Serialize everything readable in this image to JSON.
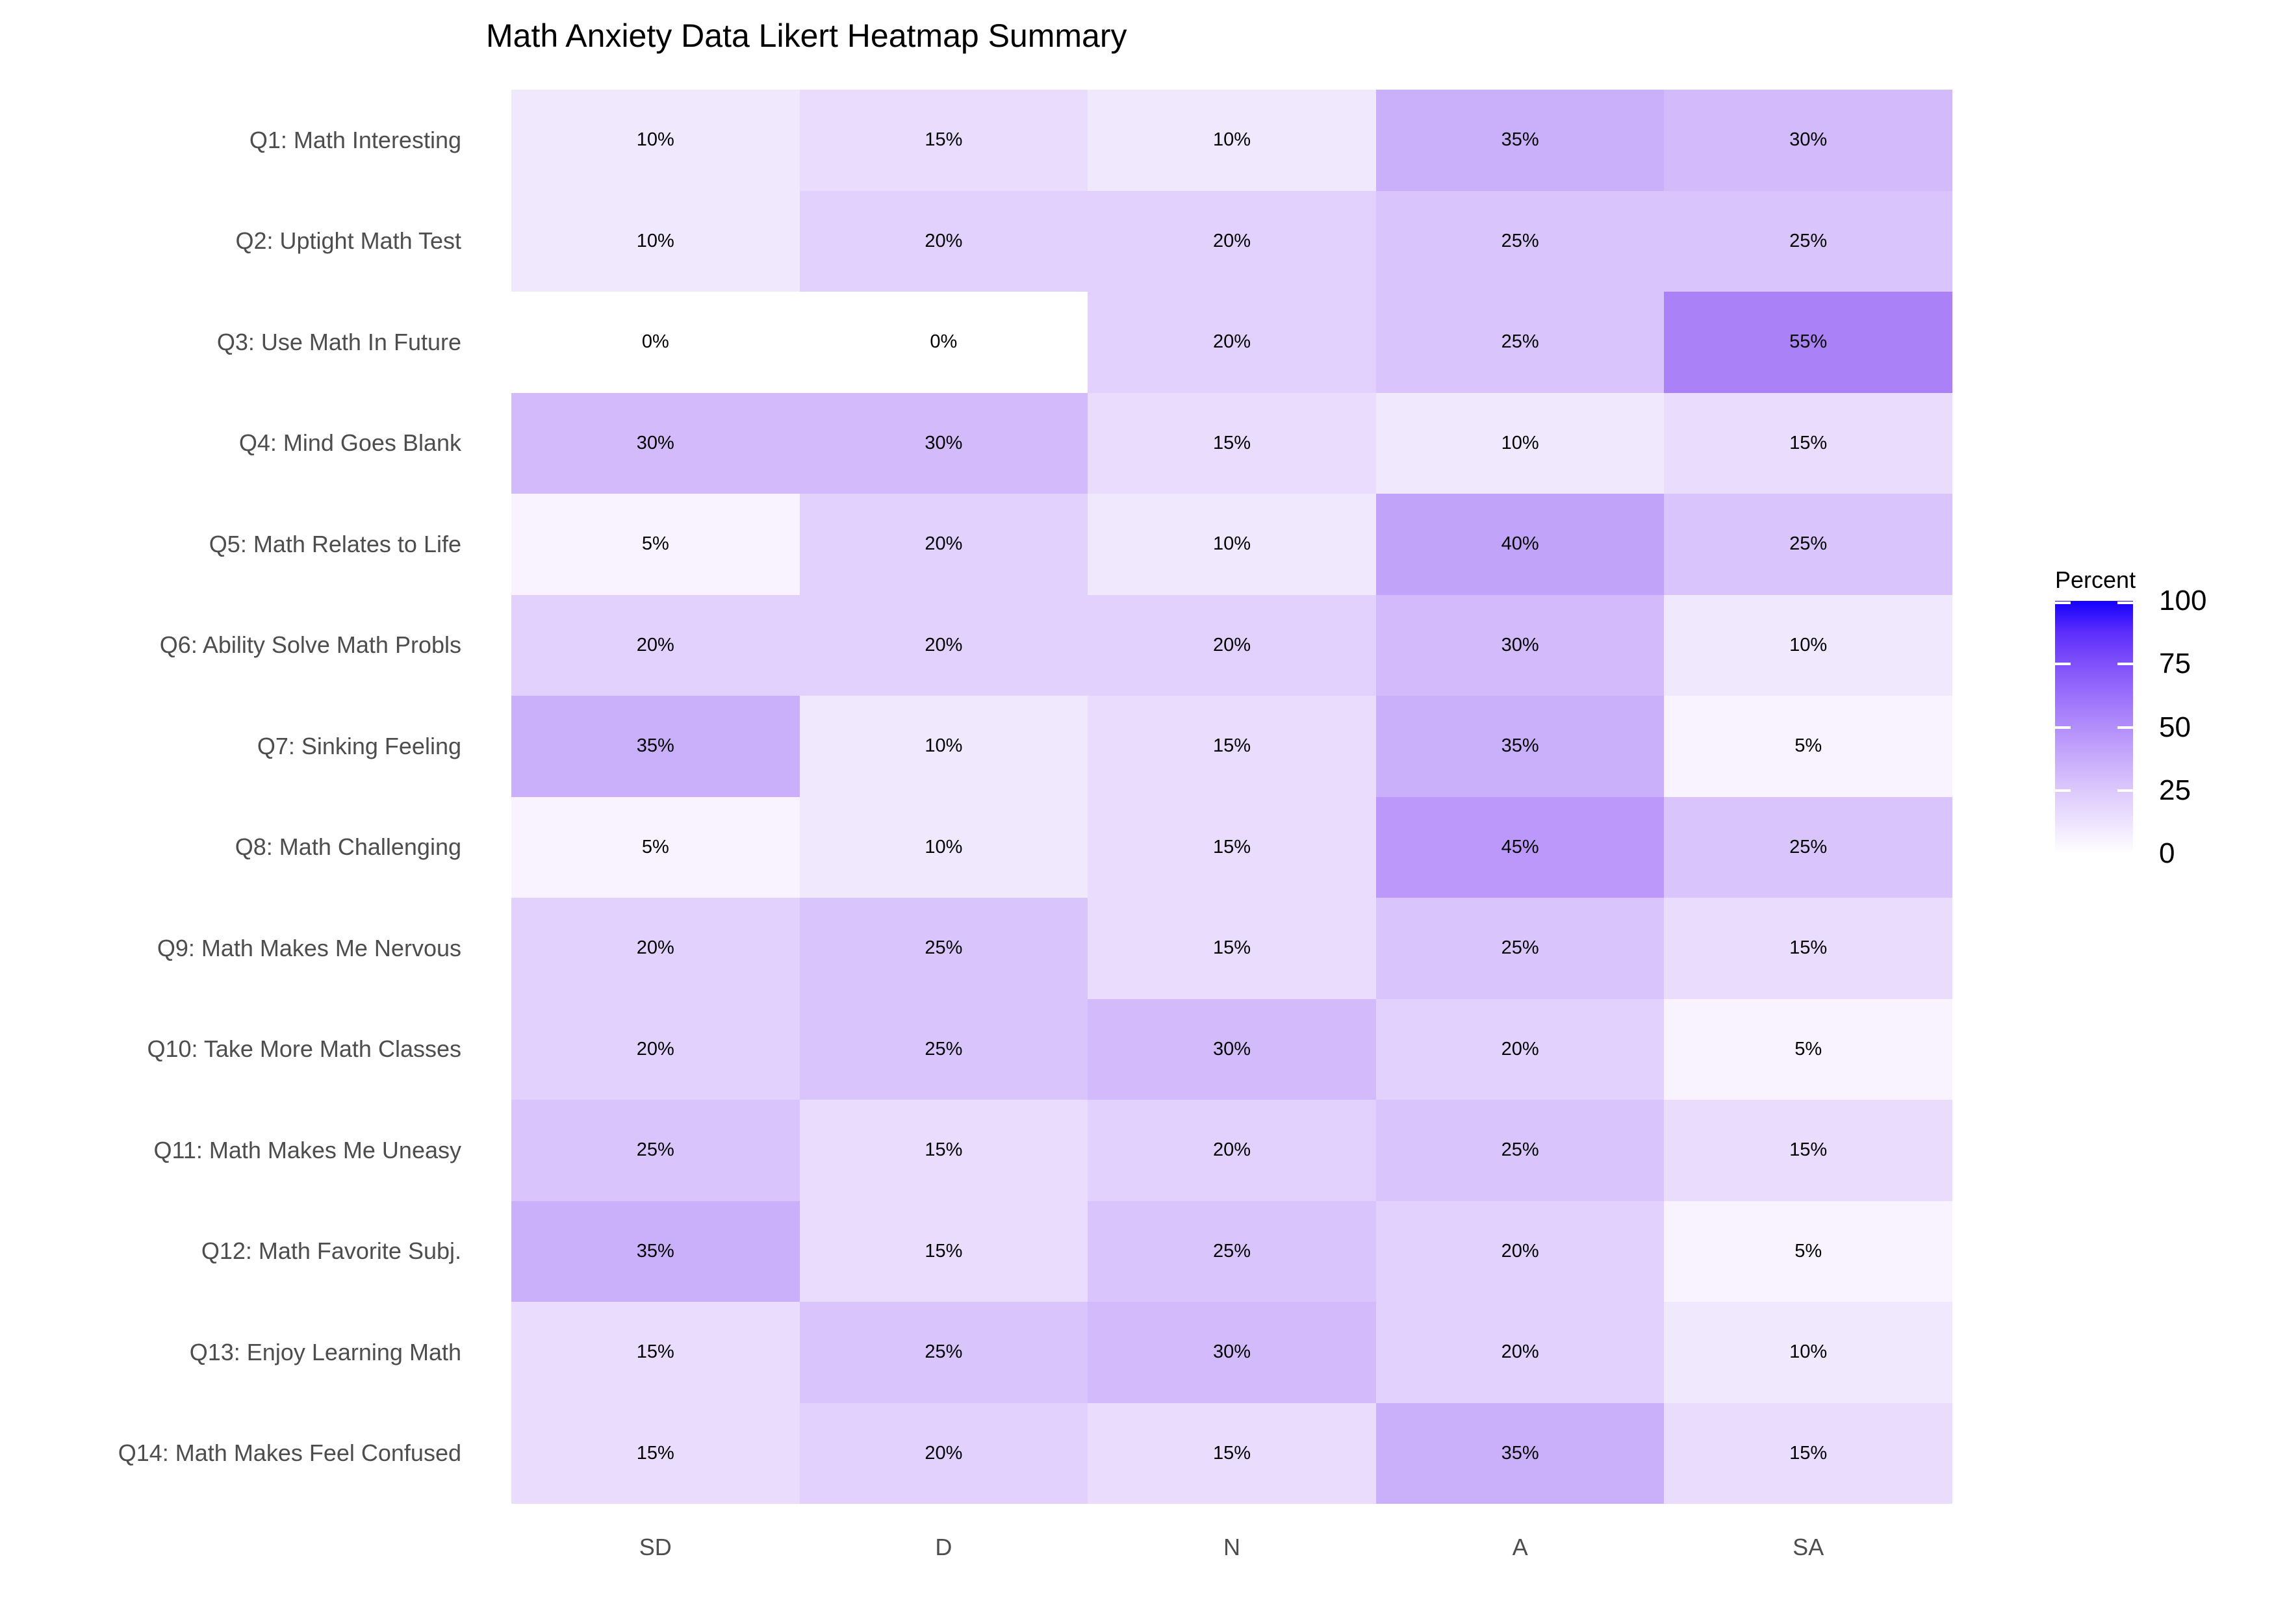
{
  "title": "Math Anxiety Data Likert Heatmap Summary",
  "legend": {
    "title": "Percent",
    "tick_labels": [
      "100",
      "75",
      "50",
      "25",
      "0"
    ],
    "tick_values": [
      100,
      75,
      50,
      25,
      0
    ],
    "gradient_stops": [
      {
        "value": 0,
        "color": "#FFFFFF"
      },
      {
        "value": 12.5,
        "color": "#EDE3FD"
      },
      {
        "value": 25,
        "color": "#DCC9FC"
      },
      {
        "value": 37.5,
        "color": "#C8ACFB"
      },
      {
        "value": 50,
        "color": "#B28EFB"
      },
      {
        "value": 62.5,
        "color": "#9B70FB"
      },
      {
        "value": 75,
        "color": "#8051FA"
      },
      {
        "value": 87.5,
        "color": "#5C2EF9"
      },
      {
        "value": 100,
        "color": "#1500FE"
      }
    ]
  },
  "chart_data": {
    "type": "heatmap",
    "title": "Math Anxiety Data Likert Heatmap Summary",
    "x_categories": [
      "SD",
      "D",
      "N",
      "A",
      "SA"
    ],
    "y_categories": [
      "Q1: Math Interesting",
      "Q2: Uptight Math Test",
      "Q3: Use Math In Future",
      "Q4: Mind Goes Blank",
      "Q5: Math Relates to Life",
      "Q6: Ability Solve Math Probls",
      "Q7: Sinking Feeling",
      "Q8: Math Challenging",
      "Q9: Math Makes Me Nervous",
      "Q10: Take More Math Classes",
      "Q11: Math Makes Me Uneasy",
      "Q12: Math Favorite Subj.",
      "Q13: Enjoy Learning Math",
      "Q14: Math Makes Feel Confused"
    ],
    "values_percent": [
      [
        10,
        15,
        10,
        35,
        30
      ],
      [
        10,
        20,
        20,
        25,
        25
      ],
      [
        0,
        0,
        20,
        25,
        55
      ],
      [
        30,
        30,
        15,
        10,
        15
      ],
      [
        5,
        20,
        10,
        40,
        25
      ],
      [
        20,
        20,
        20,
        30,
        10
      ],
      [
        35,
        10,
        15,
        35,
        5
      ],
      [
        5,
        10,
        15,
        45,
        25
      ],
      [
        20,
        25,
        15,
        25,
        15
      ],
      [
        20,
        25,
        30,
        20,
        5
      ],
      [
        25,
        15,
        20,
        25,
        15
      ],
      [
        35,
        15,
        25,
        20,
        5
      ],
      [
        15,
        25,
        30,
        20,
        10
      ],
      [
        15,
        20,
        15,
        35,
        15
      ]
    ],
    "cell_label_suffix": "%",
    "fill_scale": {
      "name": "Percent",
      "domain": [
        0,
        100
      ],
      "low_color": "#FFFFFF",
      "high_color": "#1500FE",
      "value_colors": {
        "0": "#FFFFFF",
        "5": "#F8F3FE",
        "10": "#F0E8FD",
        "15": "#E9DCFC",
        "20": "#E1D1FC",
        "25": "#D9C5FB",
        "30": "#D2BAFB",
        "35": "#CAAFFA",
        "40": "#C2A3FA",
        "45": "#BB98F9",
        "55": "#AB81F8"
      }
    },
    "legend_position": "right",
    "grid": false,
    "axis_ticks": false
  },
  "colors": {
    "axis_text": "#4D4D4D",
    "cell_text": "#000000",
    "title_text": "#000000",
    "background": "#FFFFFF"
  }
}
